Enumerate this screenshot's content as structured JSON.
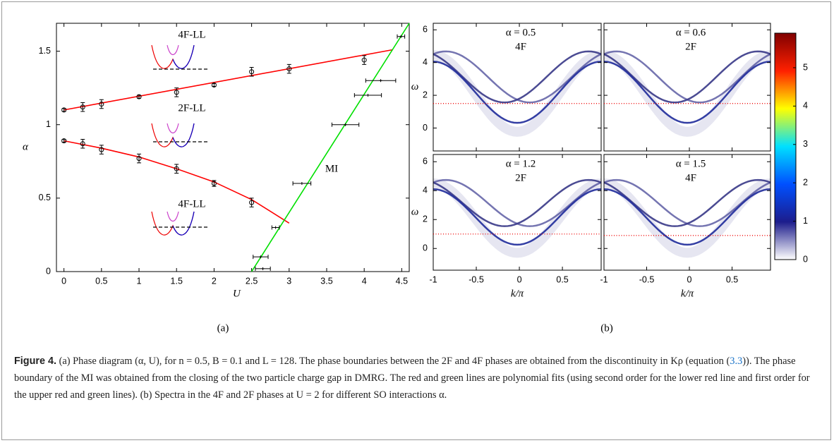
{
  "chart_data": [
    {
      "type": "scatter",
      "xlabel": "U",
      "ylabel": "α",
      "xlim": [
        -0.1,
        4.6
      ],
      "ylim": [
        0,
        1.69
      ],
      "xticks": [
        0,
        0.5,
        1,
        1.5,
        2,
        2.5,
        3,
        3.5,
        4,
        4.5
      ],
      "yticks": [
        0,
        0.5,
        1,
        1.5
      ],
      "annotations": [
        "4F-LL",
        "2F-LL",
        "4F-LL",
        "MI"
      ],
      "series": [
        {
          "style": "line",
          "color": "#ff0000",
          "x": [
            0,
            4.38
          ],
          "values": [
            1.1,
            1.51
          ]
        },
        {
          "style": "line",
          "color": "#ff0000",
          "x": [
            0,
            0.5,
            1,
            1.5,
            2,
            2.5,
            3
          ],
          "values": [
            0.89,
            0.84,
            0.78,
            0.7,
            0.61,
            0.49,
            0.33
          ]
        },
        {
          "style": "line",
          "color": "#00e000",
          "x": [
            2.5,
            4.6
          ],
          "values": [
            0,
            1.69
          ]
        },
        {
          "style": "markers",
          "marker": "circle",
          "color": "#000000",
          "x": [
            0,
            0.25,
            0.5,
            1,
            1.5,
            2,
            2.5,
            3,
            4
          ],
          "values": [
            1.1,
            1.12,
            1.14,
            1.19,
            1.22,
            1.27,
            1.36,
            1.38,
            1.44
          ],
          "y_err": [
            0.01,
            0.03,
            0.03,
            0.01,
            0.03,
            0.01,
            0.03,
            0.03,
            0.03
          ]
        },
        {
          "style": "markers",
          "marker": "circle",
          "color": "#000000",
          "x": [
            0,
            0.25,
            0.5,
            1,
            1.5,
            2,
            2.5
          ],
          "values": [
            0.89,
            0.87,
            0.83,
            0.77,
            0.7,
            0.6,
            0.47
          ],
          "y_err": [
            0.01,
            0.03,
            0.03,
            0.03,
            0.03,
            0.02,
            0.03
          ]
        },
        {
          "style": "markers",
          "marker": "star",
          "color": "#000000",
          "x": [
            2.65,
            2.62,
            2.82,
            3.17,
            3.75,
            4.05,
            4.22,
            4.49
          ],
          "values": [
            0.02,
            0.1,
            0.3,
            0.6,
            1.0,
            1.2,
            1.3,
            1.6
          ],
          "x_err": [
            0.1,
            0.1,
            0.05,
            0.12,
            0.18,
            0.18,
            0.2,
            0.05
          ]
        }
      ]
    },
    {
      "type": "heatmap",
      "title": [
        "α = 0.5",
        "4F"
      ],
      "xlim": [
        -1,
        0.95
      ],
      "ylim": [
        -1.4,
        6.4
      ],
      "xticks": [
        -1,
        -0.5,
        0,
        0.5
      ],
      "yticks": [
        0,
        2,
        4,
        6
      ],
      "ylabel": "ω",
      "tick_labels": {
        "x": false,
        "y": true
      },
      "fermi_level": 1.5
    },
    {
      "type": "heatmap",
      "title": [
        "α = 0.6",
        "2F"
      ],
      "xlim": [
        -1,
        0.95
      ],
      "ylim": [
        -1.4,
        6.4
      ],
      "xticks": [
        -1,
        -0.5,
        0,
        0.5
      ],
      "yticks": [
        0,
        2,
        4,
        6
      ],
      "tick_labels": {
        "x": false,
        "y": false
      },
      "fermi_level": 1.5
    },
    {
      "type": "heatmap",
      "title": [
        "α = 1.2",
        "2F"
      ],
      "xlim": [
        -1,
        0.95
      ],
      "ylim": [
        -1.5,
        6.5
      ],
      "xticks": [
        -1,
        -0.5,
        0,
        0.5
      ],
      "yticks": [
        0,
        2,
        4,
        6
      ],
      "xlabel": "k/π",
      "ylabel": "ω",
      "tick_labels": {
        "x": true,
        "y": true
      },
      "fermi_level": 1.0
    },
    {
      "type": "heatmap",
      "title": [
        "α = 1.5",
        "4F"
      ],
      "xlim": [
        -1,
        0.95
      ],
      "ylim": [
        -1.5,
        6.5
      ],
      "xticks": [
        -1,
        -0.5,
        0,
        0.5
      ],
      "yticks": [
        0,
        2,
        4,
        6
      ],
      "xlabel": "k/π",
      "tick_labels": {
        "x": true,
        "y": false
      },
      "fermi_level": 0.9
    },
    {
      "type": "colorbar",
      "ylim": [
        0,
        5.9
      ],
      "yticks": [
        0,
        1,
        2,
        3,
        4,
        5
      ],
      "colors": [
        "#ffffff",
        "#1c1c8c",
        "#0050ff",
        "#00e0ff",
        "#ffff00",
        "#ff2000",
        "#800000"
      ]
    }
  ],
  "panel_labels": [
    "(a)",
    "(b)"
  ],
  "caption": {
    "label": "Figure 4.",
    "text_1": " (a) Phase diagram (α, U), for n = 0.5, B = 0.1 and L = 128. The phase boundaries between the 2F and 4F phases are obtained from the discontinuity in Kρ (equation (",
    "link": "3.3",
    "text_2": ")). The phase boundary of the MI was obtained from the closing of the two particle charge gap in DMRG. The red and green lines are polynomial fits (using second order for the lower red line and first order for the upper red and green lines). (b) Spectra in the 4F and 2F phases at U = 2 for different SO interactions α."
  }
}
